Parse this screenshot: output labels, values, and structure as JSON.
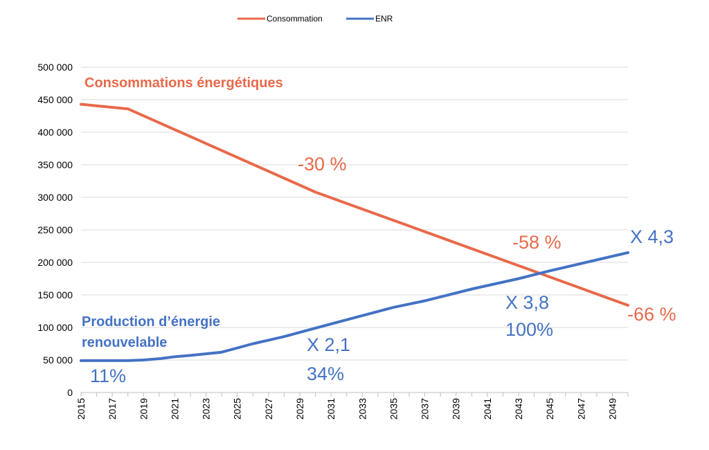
{
  "chart_data": {
    "type": "line",
    "title": "",
    "xlabel": "",
    "ylabel": "",
    "x_tick_labels": [
      "2015",
      "2017",
      "2019",
      "2021",
      "2023",
      "2025",
      "2027",
      "2029",
      "2031",
      "2033",
      "2035",
      "2037",
      "2039",
      "2041",
      "2043",
      "2045",
      "2047",
      "2049"
    ],
    "y_tick_labels": [
      "0",
      "50 000",
      "100 000",
      "150 000",
      "200 000",
      "250 000",
      "300 000",
      "350 000",
      "400 000",
      "450 000",
      "500 000"
    ],
    "xlim": [
      2015,
      2050
    ],
    "ylim": [
      0,
      500000
    ],
    "grid": "horizontal",
    "legend_position": "top-center",
    "series": [
      {
        "name": "Consommation",
        "color": "#E8694A",
        "x": [
          2015,
          2018,
          2030,
          2043,
          2050
        ],
        "y": [
          443000,
          436000,
          308000,
          195000,
          134000
        ]
      },
      {
        "name": "ENR",
        "color": "#4472C4",
        "x": [
          2015,
          2018,
          2019,
          2020,
          2021,
          2022,
          2024,
          2026,
          2028,
          2030,
          2035,
          2037,
          2040,
          2043,
          2045,
          2050
        ],
        "y": [
          49000,
          49000,
          50000,
          52000,
          55000,
          57000,
          62000,
          75000,
          86000,
          99000,
          131000,
          141000,
          159000,
          175000,
          187000,
          215000
        ]
      }
    ],
    "annotations": {
      "consumption_title": "Consommations énergétiques",
      "production_title_line1": "Production d’énergie",
      "production_title_line2": "renouvelable",
      "minus30": "-30 %",
      "minus58": "-58 %",
      "minus66": "-66 %",
      "x43": "X 4,3",
      "x38": "X 3,8",
      "pct100": "100%",
      "x21": "X 2,1",
      "pct34": "34%",
      "pct11": "11%"
    }
  }
}
